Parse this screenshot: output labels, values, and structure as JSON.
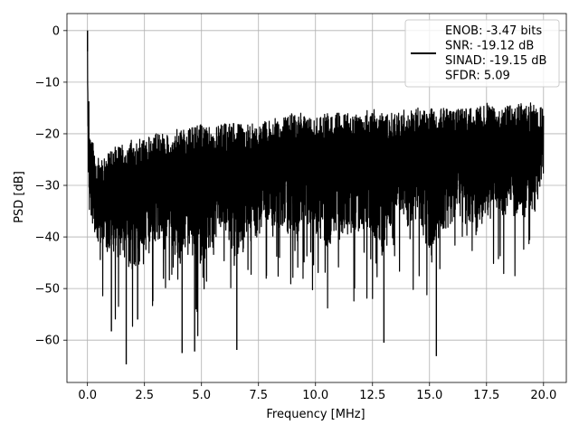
{
  "chart_data": {
    "type": "line",
    "title": "",
    "xlabel": "Frequency [MHz]",
    "ylabel": "PSD [dB]",
    "xlim": [
      -0.9,
      21.0
    ],
    "ylim": [
      -68.2,
      3.3
    ],
    "x_ticks": [
      0.0,
      2.5,
      5.0,
      7.5,
      10.0,
      12.5,
      15.0,
      17.5,
      20.0
    ],
    "x_tick_labels": [
      "0.0",
      "2.5",
      "5.0",
      "7.5",
      "10.0",
      "12.5",
      "15.0",
      "17.5",
      "20.0"
    ],
    "y_ticks": [
      0,
      -10,
      -20,
      -30,
      -40,
      -50,
      -60
    ],
    "y_tick_labels": [
      "0",
      "−10",
      "−20",
      "−30",
      "−40",
      "−50",
      "−60"
    ],
    "grid": true,
    "legend_position": "upper right",
    "series": [
      {
        "color": "#000000",
        "legend_lines": [
          "ENOB: -3.47 bits",
          "SNR: -19.12 dB",
          "SINAD: -19.15 dB",
          "SFDR: 5.09"
        ],
        "x": [
          0.0,
          0.02,
          0.04,
          0.06,
          0.08,
          0.1,
          0.5,
          1.0,
          1.5,
          2.0,
          2.5,
          3.0,
          3.5,
          4.0,
          4.5,
          5.0,
          5.5,
          6.0,
          6.5,
          7.0,
          7.5,
          8.0,
          8.5,
          9.0,
          9.5,
          10.0,
          10.5,
          11.0,
          11.5,
          12.0,
          12.5,
          13.0,
          13.5,
          14.0,
          14.5,
          15.0,
          15.5,
          16.0,
          16.5,
          17.0,
          17.5,
          18.0,
          18.5,
          19.0,
          19.5,
          20.0
        ],
        "envelope_max": [
          0,
          -8,
          -15,
          -12,
          -17,
          -20,
          -25,
          -23,
          -22,
          -21,
          -21,
          -20,
          -20,
          -19,
          -19,
          -18,
          -19,
          -18,
          -18,
          -18,
          -18,
          -17,
          -17,
          -16,
          -16,
          -17,
          -16,
          -16,
          -16,
          -16,
          -15,
          -16,
          -16,
          -15,
          -15,
          -15,
          -15,
          -15,
          -15,
          -15,
          -14,
          -15,
          -14,
          -14,
          -14,
          -15
        ],
        "envelope_min": [
          -18,
          -25,
          -38,
          -42,
          -44,
          -45,
          -53,
          -55,
          -58,
          -64,
          -56,
          -55,
          -52,
          -62,
          -58,
          -62,
          -56,
          -50,
          -61,
          -52,
          -53,
          -50,
          -51,
          -55,
          -51,
          -53,
          -58,
          -52,
          -55,
          -52,
          -55,
          -60,
          -50,
          -52,
          -50,
          -63,
          -55,
          -50,
          -48,
          -55,
          -50,
          -47,
          -50,
          -50,
          -48,
          -36
        ],
        "spikes": [
          {
            "x": 0.0,
            "y": 0
          },
          {
            "x": 1.7,
            "y": -64.7
          },
          {
            "x": 4.15,
            "y": -62.5
          },
          {
            "x": 4.7,
            "y": -62.2
          },
          {
            "x": 6.55,
            "y": -61.9
          },
          {
            "x": 13.0,
            "y": -60.5
          },
          {
            "x": 15.3,
            "y": -63.1
          },
          {
            "x": 1.05,
            "y": -58.3
          },
          {
            "x": 2.2,
            "y": -56.0
          }
        ]
      }
    ]
  }
}
